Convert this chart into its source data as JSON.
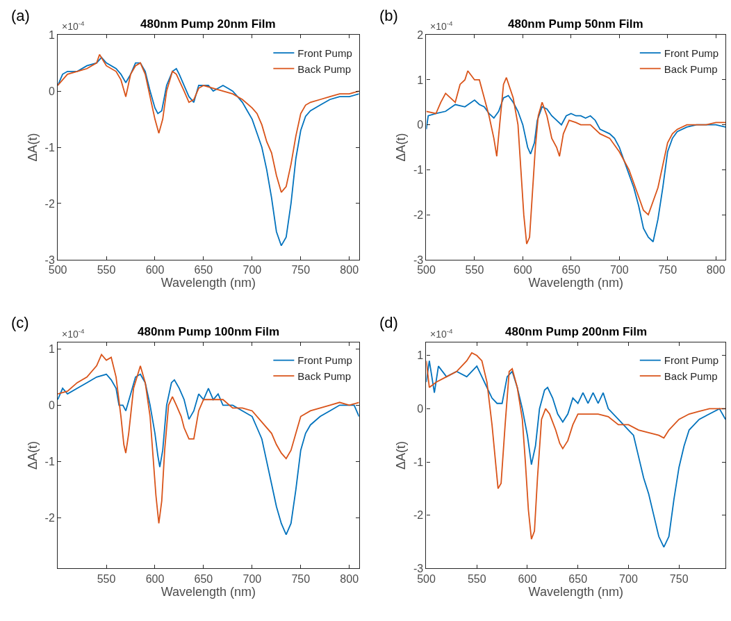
{
  "chart_data": [
    {
      "type": "line",
      "title": "480nm Pump 20nm Film",
      "xlabel": "Wavelength (nm)",
      "ylabel": "ΔA(t)",
      "annotations": [
        "(a)",
        "×10$^{-4}$"
      ],
      "xlim": [
        500,
        810
      ],
      "ylim": [
        -3,
        1
      ],
      "xticks": [
        500,
        550,
        600,
        650,
        700,
        750,
        800
      ],
      "yticks": [
        -3,
        -2,
        -1,
        0,
        1
      ],
      "legend": "top right",
      "line_style": "solid",
      "series": [
        {
          "name": "Front Pump",
          "color": "#0072bd",
          "x": [
            500,
            505,
            510,
            520,
            530,
            540,
            545,
            550,
            560,
            565,
            570,
            575,
            580,
            585,
            590,
            595,
            600,
            603,
            607,
            612,
            618,
            622,
            625,
            630,
            635,
            640,
            645,
            650,
            655,
            660,
            665,
            670,
            675,
            680,
            685,
            690,
            695,
            700,
            705,
            710,
            715,
            720,
            725,
            730,
            735,
            740,
            745,
            750,
            755,
            760,
            770,
            780,
            790,
            800,
            810
          ],
          "values": [
            0.1,
            0.3,
            0.35,
            0.35,
            0.45,
            0.5,
            0.6,
            0.5,
            0.4,
            0.3,
            0.15,
            0.3,
            0.5,
            0.5,
            0.35,
            0.0,
            -0.3,
            -0.4,
            -0.35,
            0.1,
            0.35,
            0.4,
            0.3,
            0.1,
            -0.1,
            -0.2,
            0.1,
            0.1,
            0.1,
            0.0,
            0.05,
            0.1,
            0.05,
            0.0,
            -0.1,
            -0.2,
            -0.35,
            -0.5,
            -0.75,
            -1.0,
            -1.4,
            -1.9,
            -2.5,
            -2.75,
            -2.6,
            -2.0,
            -1.2,
            -0.7,
            -0.45,
            -0.35,
            -0.25,
            -0.15,
            -0.1,
            -0.1,
            -0.05
          ]
        },
        {
          "name": "Back Pump",
          "color": "#d95319",
          "x": [
            500,
            510,
            520,
            530,
            540,
            543,
            550,
            560,
            565,
            570,
            575,
            580,
            585,
            590,
            595,
            600,
            604,
            608,
            612,
            618,
            622,
            630,
            635,
            640,
            645,
            650,
            660,
            670,
            680,
            690,
            700,
            705,
            710,
            715,
            720,
            725,
            730,
            735,
            740,
            745,
            750,
            755,
            760,
            770,
            780,
            790,
            800,
            810
          ],
          "values": [
            0.1,
            0.3,
            0.35,
            0.4,
            0.5,
            0.65,
            0.45,
            0.35,
            0.2,
            -0.1,
            0.3,
            0.45,
            0.5,
            0.3,
            -0.1,
            -0.5,
            -0.75,
            -0.5,
            0.0,
            0.35,
            0.3,
            0.0,
            -0.2,
            -0.15,
            0.05,
            0.1,
            0.05,
            0.0,
            -0.05,
            -0.15,
            -0.3,
            -0.4,
            -0.6,
            -0.9,
            -1.1,
            -1.5,
            -1.8,
            -1.7,
            -1.3,
            -0.8,
            -0.4,
            -0.25,
            -0.2,
            -0.15,
            -0.1,
            -0.05,
            -0.05,
            0.0
          ]
        }
      ]
    },
    {
      "type": "line",
      "title": "480nm Pump 50nm Film",
      "xlabel": "Wavelength (nm)",
      "ylabel": "ΔA(t)",
      "annotations": [
        "(b)",
        "×10$^{-4}$"
      ],
      "xlim": [
        500,
        810
      ],
      "ylim": [
        -3,
        2
      ],
      "xticks": [
        500,
        550,
        600,
        650,
        700,
        750,
        800
      ],
      "yticks": [
        -3,
        -2,
        -1,
        0,
        1,
        2
      ],
      "legend": "top right",
      "line_style": "solid",
      "series": [
        {
          "name": "Front Pump",
          "color": "#0072bd",
          "x": [
            500,
            502,
            510,
            520,
            530,
            540,
            550,
            555,
            560,
            565,
            570,
            575,
            580,
            585,
            590,
            595,
            600,
            605,
            608,
            612,
            615,
            620,
            625,
            630,
            635,
            640,
            645,
            650,
            655,
            660,
            665,
            670,
            675,
            680,
            690,
            695,
            700,
            705,
            710,
            715,
            720,
            725,
            730,
            735,
            740,
            745,
            750,
            755,
            760,
            770,
            780,
            790,
            800,
            810
          ],
          "values": [
            -0.1,
            0.2,
            0.25,
            0.3,
            0.45,
            0.4,
            0.55,
            0.45,
            0.4,
            0.25,
            0.15,
            0.3,
            0.6,
            0.65,
            0.5,
            0.3,
            0.0,
            -0.5,
            -0.65,
            -0.4,
            0.1,
            0.4,
            0.35,
            0.2,
            0.1,
            0.0,
            0.2,
            0.25,
            0.2,
            0.2,
            0.15,
            0.2,
            0.1,
            -0.1,
            -0.2,
            -0.3,
            -0.5,
            -0.8,
            -1.1,
            -1.4,
            -1.8,
            -2.3,
            -2.5,
            -2.6,
            -2.1,
            -1.4,
            -0.6,
            -0.3,
            -0.15,
            -0.05,
            0.0,
            0.0,
            0.0,
            -0.05
          ]
        },
        {
          "name": "Back Pump",
          "color": "#d95319",
          "x": [
            500,
            510,
            515,
            520,
            525,
            530,
            535,
            540,
            543,
            550,
            555,
            560,
            565,
            570,
            573,
            576,
            580,
            583,
            590,
            595,
            598,
            601,
            604,
            607,
            610,
            613,
            616,
            620,
            625,
            630,
            635,
            638,
            642,
            648,
            655,
            660,
            670,
            680,
            690,
            700,
            705,
            710,
            715,
            720,
            725,
            730,
            735,
            740,
            745,
            750,
            755,
            760,
            770,
            780,
            790,
            800,
            810
          ],
          "values": [
            0.3,
            0.25,
            0.5,
            0.7,
            0.6,
            0.5,
            0.9,
            1.0,
            1.2,
            1.0,
            1.0,
            0.6,
            0.2,
            -0.3,
            -0.7,
            0.0,
            0.9,
            1.05,
            0.6,
            0.0,
            -1.0,
            -2.0,
            -2.65,
            -2.5,
            -1.5,
            -0.5,
            0.2,
            0.5,
            0.2,
            -0.3,
            -0.5,
            -0.7,
            -0.2,
            0.1,
            0.05,
            0.0,
            0.0,
            -0.2,
            -0.3,
            -0.6,
            -0.8,
            -1.0,
            -1.3,
            -1.6,
            -1.9,
            -2.0,
            -1.7,
            -1.4,
            -0.9,
            -0.4,
            -0.2,
            -0.1,
            0.0,
            0.0,
            0.0,
            0.05,
            0.05
          ]
        }
      ]
    },
    {
      "type": "line",
      "title": "480nm Pump 100nm Film",
      "xlabel": "Wavelength (nm)",
      "ylabel": "ΔA(t)",
      "annotations": [
        "(c)",
        "×10$^{-4}$"
      ],
      "xlim": [
        500,
        810
      ],
      "ylim": [
        -2.9,
        1.12
      ],
      "xticks": [
        550,
        600,
        650,
        700,
        750,
        800
      ],
      "yticks": [
        -2,
        -1,
        0,
        1
      ],
      "legend": "top right",
      "line_style": "solid",
      "series": [
        {
          "name": "Front Pump",
          "color": "#0072bd",
          "x": [
            500,
            505,
            510,
            520,
            530,
            540,
            550,
            555,
            560,
            563,
            567,
            570,
            575,
            580,
            585,
            590,
            595,
            600,
            603,
            605,
            608,
            612,
            617,
            620,
            625,
            630,
            635,
            640,
            645,
            650,
            655,
            660,
            665,
            670,
            680,
            690,
            700,
            705,
            710,
            715,
            720,
            725,
            730,
            735,
            740,
            745,
            750,
            755,
            760,
            770,
            780,
            790,
            800,
            805,
            810
          ],
          "values": [
            0.1,
            0.3,
            0.2,
            0.3,
            0.4,
            0.5,
            0.55,
            0.45,
            0.3,
            0.0,
            0.0,
            -0.1,
            0.2,
            0.5,
            0.55,
            0.4,
            0.0,
            -0.5,
            -0.9,
            -1.1,
            -0.8,
            0.0,
            0.4,
            0.45,
            0.3,
            0.1,
            -0.25,
            -0.1,
            0.2,
            0.1,
            0.3,
            0.1,
            0.2,
            0.0,
            0.0,
            -0.1,
            -0.2,
            -0.4,
            -0.6,
            -1.0,
            -1.4,
            -1.8,
            -2.1,
            -2.3,
            -2.1,
            -1.5,
            -0.8,
            -0.5,
            -0.35,
            -0.2,
            -0.1,
            0.0,
            0.0,
            0.0,
            -0.2
          ]
        },
        {
          "name": "Back Pump",
          "color": "#d95319",
          "x": [
            500,
            510,
            520,
            530,
            540,
            545,
            550,
            555,
            560,
            565,
            568,
            570,
            573,
            578,
            585,
            590,
            595,
            598,
            601,
            604,
            607,
            610,
            614,
            618,
            622,
            627,
            630,
            635,
            640,
            645,
            650,
            660,
            670,
            680,
            690,
            700,
            710,
            720,
            725,
            730,
            735,
            740,
            745,
            750,
            760,
            770,
            780,
            790,
            800,
            810
          ],
          "values": [
            0.2,
            0.25,
            0.4,
            0.5,
            0.7,
            0.9,
            0.8,
            0.85,
            0.5,
            -0.2,
            -0.7,
            -0.85,
            -0.5,
            0.3,
            0.7,
            0.4,
            -0.2,
            -0.9,
            -1.6,
            -2.1,
            -1.7,
            -0.8,
            0.0,
            0.15,
            0.0,
            -0.2,
            -0.4,
            -0.6,
            -0.6,
            -0.1,
            0.1,
            0.1,
            0.1,
            -0.05,
            -0.05,
            -0.1,
            -0.3,
            -0.5,
            -0.7,
            -0.85,
            -0.95,
            -0.8,
            -0.5,
            -0.2,
            -0.1,
            -0.05,
            0.0,
            0.05,
            0.0,
            0.05
          ]
        }
      ]
    },
    {
      "type": "line",
      "title": "480nm Pump 200nm Film",
      "xlabel": "Wavelength (nm)",
      "ylabel": "ΔA(t)",
      "annotations": [
        "(d)",
        "×10$^{-4}$"
      ],
      "xlim": [
        500,
        796
      ],
      "ylim": [
        -3,
        1.25
      ],
      "xticks": [
        500,
        550,
        600,
        650,
        700,
        750
      ],
      "yticks": [
        -3,
        -2,
        -1,
        0,
        1
      ],
      "legend": "top right",
      "line_style": "solid",
      "series": [
        {
          "name": "Front Pump",
          "color": "#0072bd",
          "x": [
            500,
            503,
            508,
            512,
            520,
            530,
            540,
            550,
            555,
            560,
            565,
            570,
            575,
            580,
            585,
            590,
            595,
            600,
            604,
            608,
            612,
            617,
            620,
            625,
            630,
            635,
            640,
            645,
            650,
            655,
            660,
            665,
            670,
            675,
            680,
            690,
            700,
            705,
            710,
            715,
            720,
            725,
            730,
            735,
            740,
            745,
            750,
            755,
            760,
            770,
            780,
            790,
            796
          ],
          "values": [
            0.5,
            0.9,
            0.3,
            0.8,
            0.6,
            0.7,
            0.6,
            0.8,
            0.6,
            0.4,
            0.2,
            0.1,
            0.1,
            0.6,
            0.7,
            0.4,
            0.0,
            -0.5,
            -1.05,
            -0.7,
            0.0,
            0.35,
            0.4,
            0.2,
            -0.1,
            -0.25,
            -0.1,
            0.2,
            0.1,
            0.3,
            0.1,
            0.3,
            0.1,
            0.3,
            0.0,
            -0.2,
            -0.4,
            -0.5,
            -0.9,
            -1.3,
            -1.6,
            -2.0,
            -2.4,
            -2.6,
            -2.4,
            -1.7,
            -1.1,
            -0.7,
            -0.4,
            -0.2,
            -0.1,
            0.0,
            -0.2
          ]
        },
        {
          "name": "Back Pump",
          "color": "#d95319",
          "x": [
            500,
            503,
            510,
            520,
            530,
            540,
            545,
            550,
            555,
            560,
            565,
            568,
            571,
            574,
            578,
            582,
            585,
            590,
            595,
            598,
            601,
            604,
            607,
            610,
            614,
            618,
            622,
            628,
            632,
            635,
            640,
            645,
            650,
            660,
            670,
            680,
            690,
            700,
            710,
            720,
            730,
            735,
            740,
            745,
            750,
            760,
            770,
            780,
            790,
            796
          ],
          "values": [
            0.9,
            0.4,
            0.5,
            0.6,
            0.7,
            0.9,
            1.05,
            1.0,
            0.9,
            0.5,
            -0.3,
            -0.9,
            -1.5,
            -1.4,
            -0.3,
            0.7,
            0.75,
            0.4,
            -0.2,
            -1.0,
            -1.9,
            -2.45,
            -2.3,
            -1.3,
            -0.2,
            0.0,
            -0.1,
            -0.4,
            -0.65,
            -0.75,
            -0.6,
            -0.3,
            -0.1,
            -0.1,
            -0.1,
            -0.15,
            -0.3,
            -0.3,
            -0.4,
            -0.45,
            -0.5,
            -0.55,
            -0.4,
            -0.3,
            -0.2,
            -0.1,
            -0.05,
            0.0,
            0.0,
            0.0
          ]
        }
      ]
    }
  ]
}
